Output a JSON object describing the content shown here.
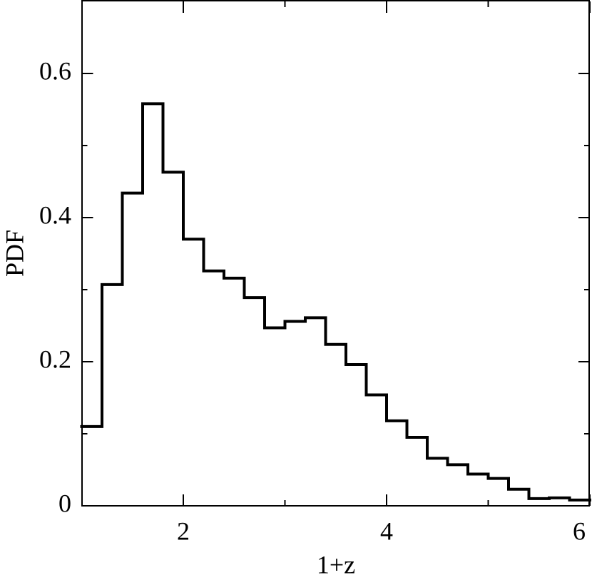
{
  "chart_data": {
    "type": "histogram",
    "xlabel": "1+z",
    "ylabel": "PDF",
    "bins": [
      1.0,
      1.2,
      1.4,
      1.6,
      1.8,
      2.0,
      2.2,
      2.4,
      2.6,
      2.8,
      3.0,
      3.2,
      3.4,
      3.6,
      3.8,
      4.0,
      4.2,
      4.4,
      4.6,
      4.8,
      5.0,
      5.2,
      5.4,
      5.6,
      5.8,
      6.0
    ],
    "values": [
      0.11,
      0.307,
      0.434,
      0.558,
      0.463,
      0.37,
      0.326,
      0.316,
      0.289,
      0.247,
      0.256,
      0.261,
      0.224,
      0.196,
      0.154,
      0.118,
      0.095,
      0.066,
      0.057,
      0.044,
      0.038,
      0.023,
      0.01,
      0.011,
      0.008
    ],
    "color": "#000000",
    "xlim": [
      1,
      6
    ],
    "ylim": [
      0,
      0.7
    ],
    "xticks": [
      2,
      4,
      6
    ],
    "xminorticks": [
      3,
      5
    ],
    "yticks": [
      0,
      0.2,
      0.4,
      0.6
    ],
    "yminorticks": [
      0.1,
      0.3,
      0.5
    ]
  }
}
